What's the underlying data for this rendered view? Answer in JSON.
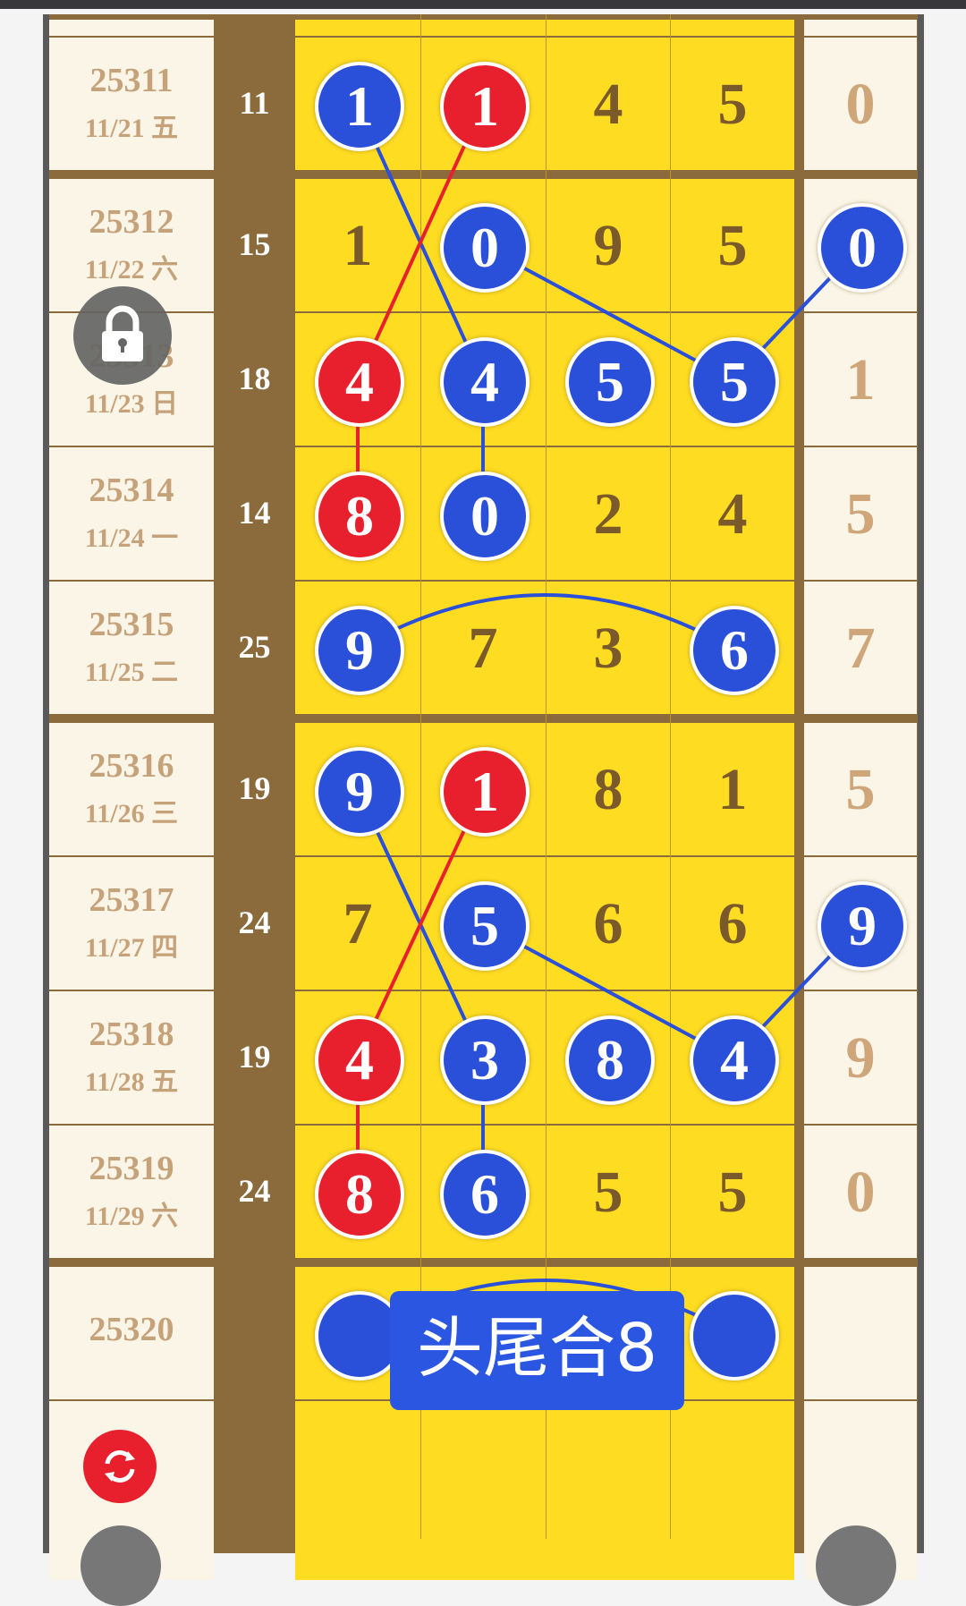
{
  "colors": {
    "blue_ball": "#2a4fd9",
    "red_ball": "#e8202d",
    "yellow": "#fedc22",
    "brown": "#8b6a3c"
  },
  "rows": [
    {
      "issue": "25311",
      "date": "11/21 五",
      "sum": "11",
      "digits": [
        {
          "v": "1",
          "ball": "blue"
        },
        {
          "v": "1",
          "ball": "red"
        },
        {
          "v": "4",
          "ball": null
        },
        {
          "v": "5",
          "ball": null
        }
      ],
      "right": {
        "v": "0",
        "ball": null
      }
    },
    {
      "issue": "25312",
      "date": "11/22 六",
      "sum": "15",
      "digits": [
        {
          "v": "1",
          "ball": null
        },
        {
          "v": "0",
          "ball": "blue"
        },
        {
          "v": "9",
          "ball": null
        },
        {
          "v": "5",
          "ball": null
        }
      ],
      "right": {
        "v": "0",
        "ball": "blue"
      }
    },
    {
      "issue": "25313",
      "date": "11/23 日",
      "sum": "18",
      "digits": [
        {
          "v": "4",
          "ball": "red"
        },
        {
          "v": "4",
          "ball": "blue"
        },
        {
          "v": "5",
          "ball": "blue"
        },
        {
          "v": "5",
          "ball": "blue"
        }
      ],
      "right": {
        "v": "1",
        "ball": null
      }
    },
    {
      "issue": "25314",
      "date": "11/24 一",
      "sum": "14",
      "digits": [
        {
          "v": "8",
          "ball": "red"
        },
        {
          "v": "0",
          "ball": "blue"
        },
        {
          "v": "2",
          "ball": null
        },
        {
          "v": "4",
          "ball": null
        }
      ],
      "right": {
        "v": "5",
        "ball": null
      }
    },
    {
      "issue": "25315",
      "date": "11/25 二",
      "sum": "25",
      "digits": [
        {
          "v": "9",
          "ball": "blue"
        },
        {
          "v": "7",
          "ball": null
        },
        {
          "v": "3",
          "ball": null
        },
        {
          "v": "6",
          "ball": "blue"
        }
      ],
      "right": {
        "v": "7",
        "ball": null
      }
    },
    {
      "issue": "25316",
      "date": "11/26 三",
      "sum": "19",
      "digits": [
        {
          "v": "9",
          "ball": "blue"
        },
        {
          "v": "1",
          "ball": "red"
        },
        {
          "v": "8",
          "ball": null
        },
        {
          "v": "1",
          "ball": null
        }
      ],
      "right": {
        "v": "5",
        "ball": null
      }
    },
    {
      "issue": "25317",
      "date": "11/27 四",
      "sum": "24",
      "digits": [
        {
          "v": "7",
          "ball": null
        },
        {
          "v": "5",
          "ball": "blue"
        },
        {
          "v": "6",
          "ball": null
        },
        {
          "v": "6",
          "ball": null
        }
      ],
      "right": {
        "v": "9",
        "ball": "blue"
      }
    },
    {
      "issue": "25318",
      "date": "11/28 五",
      "sum": "19",
      "digits": [
        {
          "v": "4",
          "ball": "red"
        },
        {
          "v": "3",
          "ball": "blue"
        },
        {
          "v": "8",
          "ball": "blue"
        },
        {
          "v": "4",
          "ball": "blue"
        }
      ],
      "right": {
        "v": "9",
        "ball": null
      }
    },
    {
      "issue": "25319",
      "date": "11/29 六",
      "sum": "24",
      "digits": [
        {
          "v": "8",
          "ball": "red"
        },
        {
          "v": "6",
          "ball": "blue"
        },
        {
          "v": "5",
          "ball": null
        },
        {
          "v": "5",
          "ball": null
        }
      ],
      "right": {
        "v": "0",
        "ball": null
      }
    },
    {
      "issue": "25320",
      "date": "",
      "sum": "",
      "digits": [
        {
          "v": "",
          "ball": "blue"
        },
        {
          "v": "",
          "ball": null
        },
        {
          "v": "",
          "ball": null
        },
        {
          "v": "",
          "ball": "blue"
        }
      ],
      "right": {
        "v": "",
        "ball": null
      }
    }
  ],
  "links": [
    {
      "from": [
        0,
        0
      ],
      "to": [
        2,
        1
      ],
      "color": "blue"
    },
    {
      "from": [
        0,
        1
      ],
      "to": [
        2,
        0
      ],
      "color": "red"
    },
    {
      "from": [
        1,
        1
      ],
      "to": [
        2,
        3
      ],
      "color": "blue"
    },
    {
      "from": [
        1,
        4
      ],
      "to": [
        2,
        3
      ],
      "color": "blue"
    },
    {
      "from": [
        2,
        0
      ],
      "to": [
        3,
        0
      ],
      "color": "red"
    },
    {
      "from": [
        2,
        1
      ],
      "to": [
        3,
        1
      ],
      "color": "blue"
    },
    {
      "from": [
        4,
        0
      ],
      "to": [
        4,
        3
      ],
      "color": "blue",
      "arc": true
    },
    {
      "from": [
        5,
        0
      ],
      "to": [
        7,
        1
      ],
      "color": "blue"
    },
    {
      "from": [
        5,
        1
      ],
      "to": [
        7,
        0
      ],
      "color": "red"
    },
    {
      "from": [
        6,
        1
      ],
      "to": [
        7,
        3
      ],
      "color": "blue"
    },
    {
      "from": [
        6,
        4
      ],
      "to": [
        7,
        3
      ],
      "color": "blue"
    },
    {
      "from": [
        7,
        0
      ],
      "to": [
        8,
        0
      ],
      "color": "red"
    },
    {
      "from": [
        7,
        1
      ],
      "to": [
        8,
        1
      ],
      "color": "blue"
    },
    {
      "from": [
        9,
        0
      ],
      "to": [
        9,
        3
      ],
      "color": "blue",
      "arc": true
    }
  ],
  "overlay_label": "头尾合8",
  "icons": {
    "lock": "lock-icon",
    "refresh": "refresh-icon"
  }
}
